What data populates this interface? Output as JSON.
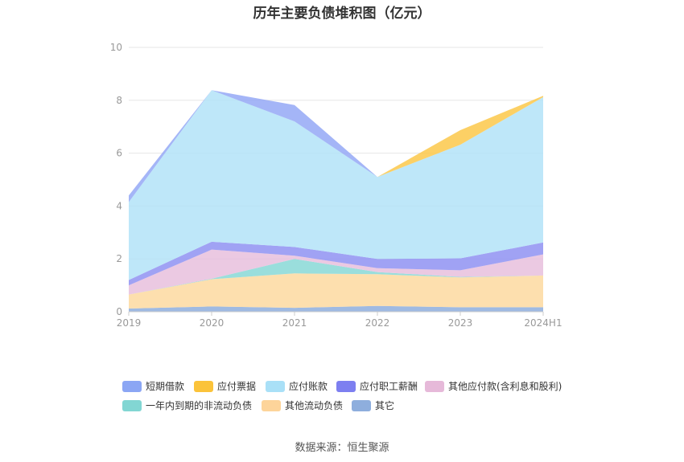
{
  "title": "历年主要负债堆积图（亿元）",
  "source_label": "数据来源：恒生聚源",
  "colors": {
    "grid": "#e6e6e6",
    "axis": "#cccccc",
    "tick_text": "#999999",
    "legend_text": "#333333"
  },
  "chart_data": {
    "type": "area",
    "stacked": true,
    "title": "历年主要负债堆积图（亿元）",
    "categories": [
      "2019",
      "2020",
      "2021",
      "2022",
      "2023",
      "2024H1"
    ],
    "y_ticks": [
      "0",
      "2",
      "4",
      "6",
      "8",
      "10"
    ],
    "ylim": [
      0,
      10
    ],
    "grid": true,
    "legend_position": "bottom",
    "series": [
      {
        "name": "其它",
        "color": "#8eaedd",
        "values": [
          0.12,
          0.2,
          0.15,
          0.22,
          0.17,
          0.17
        ]
      },
      {
        "name": "其他流动负债",
        "color": "#fdd9a0",
        "values": [
          0.53,
          1.03,
          1.3,
          1.2,
          1.13,
          1.2
        ]
      },
      {
        "name": "一年内到期的非流动负债",
        "color": "#88d8d6",
        "values": [
          0.0,
          0.02,
          0.55,
          0.08,
          0.02,
          0.0
        ]
      },
      {
        "name": "其他应付款(含利息和股利)",
        "color": "#e8bfdd",
        "values": [
          0.35,
          1.1,
          0.12,
          0.15,
          0.25,
          0.8
        ]
      },
      {
        "name": "应付职工薪酬",
        "color": "#8f92f2",
        "values": [
          0.2,
          0.3,
          0.33,
          0.35,
          0.45,
          0.45
        ]
      },
      {
        "name": "应付账款",
        "color": "#b3e3f8",
        "values": [
          2.95,
          5.73,
          4.75,
          3.1,
          4.3,
          5.5
        ]
      },
      {
        "name": "应付票据",
        "color": "#fbc84a",
        "values": [
          0.0,
          0.0,
          0.0,
          0.0,
          0.55,
          0.05
        ]
      },
      {
        "name": "短期借款",
        "color": "#94a8f6",
        "values": [
          0.25,
          0.0,
          0.62,
          0.0,
          0.0,
          0.0
        ]
      }
    ],
    "legend": [
      {
        "name": "短期借款",
        "color": "#8ba6f4"
      },
      {
        "name": "应付票据",
        "color": "#fbc33a"
      },
      {
        "name": "应付账款",
        "color": "#a9e0f7"
      },
      {
        "name": "应付职工薪酬",
        "color": "#7d7ff0"
      },
      {
        "name": "其他应付款(含利息和股利)",
        "color": "#e6b9d9"
      },
      {
        "name": "一年内到期的非流动负债",
        "color": "#82d6d3"
      },
      {
        "name": "其他流动负债",
        "color": "#fdd49a"
      },
      {
        "name": "其它",
        "color": "#8eaedd"
      }
    ]
  }
}
